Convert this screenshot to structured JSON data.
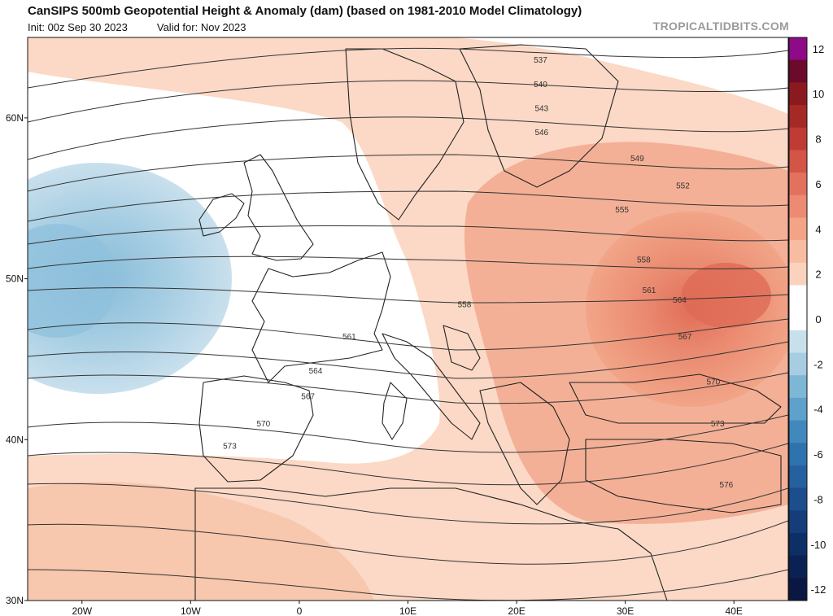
{
  "header": {
    "title": "CanSIPS 500mb Geopotential Height & Anomaly (dam) (based on 1981-2010 Model Climatology)",
    "init": "Init: 00z Sep 30 2023",
    "valid": "Valid for: Nov 2023",
    "watermark": "TROPICALTIDBITS.COM"
  },
  "map": {
    "region": "Europe / North Atlantic",
    "lon_range": [
      -25,
      45
    ],
    "lat_range": [
      30,
      65
    ],
    "lon_ticks": [
      {
        "lon": -20,
        "label": "20W"
      },
      {
        "lon": -10,
        "label": "10W"
      },
      {
        "lon": 0,
        "label": "0"
      },
      {
        "lon": 10,
        "label": "10E"
      },
      {
        "lon": 20,
        "label": "20E"
      },
      {
        "lon": 30,
        "label": "30E"
      },
      {
        "lon": 40,
        "label": "40E"
      }
    ],
    "lat_ticks": [
      {
        "lat": 60,
        "label": "60N"
      },
      {
        "lat": 50,
        "label": "50N"
      },
      {
        "lat": 40,
        "label": "40N"
      },
      {
        "lat": 30,
        "label": "30N"
      }
    ],
    "contours": [
      {
        "value": "537",
        "label_lon": 22.2,
        "label_lat": 63.6
      },
      {
        "value": "540",
        "label_lon": 22.2,
        "label_lat": 62.1
      },
      {
        "value": "543",
        "label_lon": 22.3,
        "label_lat": 60.6
      },
      {
        "value": "546",
        "label_lon": 22.3,
        "label_lat": 59.1
      },
      {
        "value": "549",
        "label_lon": 31.1,
        "label_lat": 57.5
      },
      {
        "value": "552",
        "label_lon": 35.3,
        "label_lat": 55.8
      },
      {
        "value": "555",
        "label_lon": 29.7,
        "label_lat": 54.3
      },
      {
        "value": "558",
        "label_lon": 15.2,
        "label_lat": 48.4
      },
      {
        "value": "558",
        "label_lon": 31.7,
        "label_lat": 51.2
      },
      {
        "value": "561",
        "label_lon": 4.6,
        "label_lat": 46.4
      },
      {
        "value": "561",
        "label_lon": 32.2,
        "label_lat": 49.3
      },
      {
        "value": "564",
        "label_lon": 1.5,
        "label_lat": 44.3
      },
      {
        "value": "564",
        "label_lon": 35.0,
        "label_lat": 48.7
      },
      {
        "value": "567",
        "label_lon": 0.8,
        "label_lat": 42.7
      },
      {
        "value": "567",
        "label_lon": 35.5,
        "label_lat": 46.4
      },
      {
        "value": "570",
        "label_lon": -3.3,
        "label_lat": 41.0
      },
      {
        "value": "570",
        "label_lon": 38.1,
        "label_lat": 43.6
      },
      {
        "value": "573",
        "label_lon": -6.4,
        "label_lat": 39.6
      },
      {
        "value": "573",
        "label_lon": 38.5,
        "label_lat": 41.0
      },
      {
        "value": "576",
        "label_lon": 39.3,
        "label_lat": 37.2
      }
    ]
  },
  "colorbar": {
    "units": "dam",
    "levels": [
      {
        "label": "12",
        "color": "#8e0a86"
      },
      {
        "label": "",
        "color": "#6b0a2a"
      },
      {
        "label": "10",
        "color": "#8b1a1f"
      },
      {
        "label": "",
        "color": "#a52a25"
      },
      {
        "label": "8",
        "color": "#bf3b33"
      },
      {
        "label": "",
        "color": "#d35546"
      },
      {
        "label": "6",
        "color": "#e2725e"
      },
      {
        "label": "",
        "color": "#ec8a72"
      },
      {
        "label": "4",
        "color": "#f3a487"
      },
      {
        "label": "",
        "color": "#f8bda1"
      },
      {
        "label": "2",
        "color": "#fbd3bd"
      },
      {
        "label": "",
        "color": "#ffffff"
      },
      {
        "label": "0",
        "color": "#ffffff"
      },
      {
        "label": "",
        "color": "#c8e0ec"
      },
      {
        "label": "-2",
        "color": "#a6cde2"
      },
      {
        "label": "",
        "color": "#7eb6d6"
      },
      {
        "label": "-4",
        "color": "#5ea1cb"
      },
      {
        "label": "",
        "color": "#4189bd"
      },
      {
        "label": "-6",
        "color": "#2f73ae"
      },
      {
        "label": "",
        "color": "#25609f"
      },
      {
        "label": "-8",
        "color": "#1c4e8d"
      },
      {
        "label": "",
        "color": "#143d79"
      },
      {
        "label": "-10",
        "color": "#0e2f66"
      },
      {
        "label": "",
        "color": "#0a2253"
      },
      {
        "label": "-12",
        "color": "#0a1742"
      }
    ]
  }
}
